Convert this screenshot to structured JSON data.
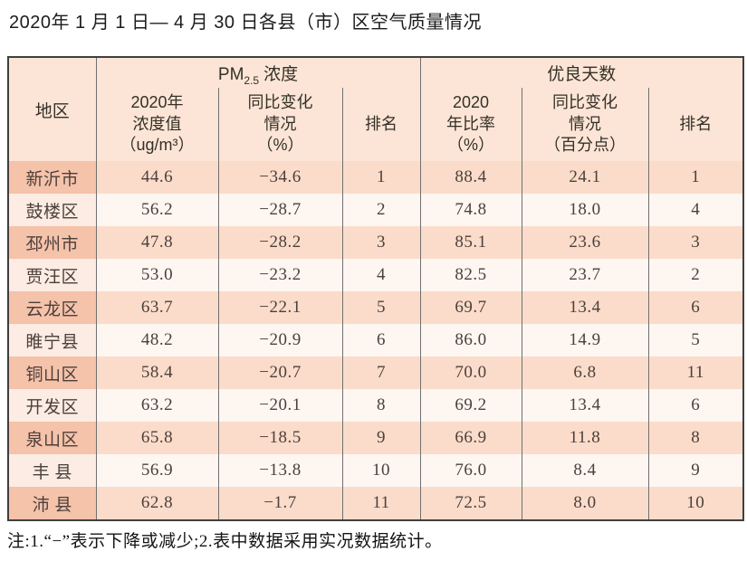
{
  "page": {
    "title": "2020年 1 月 1 日— 4 月 30 日各县（市）区空气质量情况",
    "footnote": "注:1.“−”表示下降或减少;2.表中数据采用实况数据统计。"
  },
  "colors": {
    "header_bg": "#fce5d6",
    "odd_row_region_bg": "#f5c2aa",
    "odd_row_cell_bg": "#fbdcca",
    "even_row_region_bg": "#fcece3",
    "even_row_cell_bg": "#fdf6f1",
    "outer_border": "#3f3f3f",
    "inner_border": "#707070",
    "body_text": "#4c403b"
  },
  "table": {
    "corner_label": "地区",
    "pm_group": {
      "prefix": "PM",
      "sub": "2.5",
      "suffix": "浓度"
    },
    "days_group_label": "优良天数",
    "subheaders": {
      "pm_value": "2020年\n浓度值\n（ug/m³）",
      "pm_change": "同比变化\n情况\n（%）",
      "pm_rank": "排名",
      "days_rate": "2020\n年比率\n（%）",
      "days_change": "同比变化\n情况\n（百分点）",
      "days_rank": "排名"
    },
    "rows": [
      {
        "region": "新沂市",
        "pm_value": "44.6",
        "pm_change": "−34.6",
        "pm_rank": "1",
        "days_rate": "88.4",
        "days_change": "24.1",
        "days_rank": "1"
      },
      {
        "region": "鼓楼区",
        "pm_value": "56.2",
        "pm_change": "−28.7",
        "pm_rank": "2",
        "days_rate": "74.8",
        "days_change": "18.0",
        "days_rank": "4"
      },
      {
        "region": "邳州市",
        "pm_value": "47.8",
        "pm_change": "−28.2",
        "pm_rank": "3",
        "days_rate": "85.1",
        "days_change": "23.6",
        "days_rank": "3"
      },
      {
        "region": "贾汪区",
        "pm_value": "53.0",
        "pm_change": "−23.2",
        "pm_rank": "4",
        "days_rate": "82.5",
        "days_change": "23.7",
        "days_rank": "2"
      },
      {
        "region": "云龙区",
        "pm_value": "63.7",
        "pm_change": "−22.1",
        "pm_rank": "5",
        "days_rate": "69.7",
        "days_change": "13.4",
        "days_rank": "6"
      },
      {
        "region": "睢宁县",
        "pm_value": "48.2",
        "pm_change": "−20.9",
        "pm_rank": "6",
        "days_rate": "86.0",
        "days_change": "14.9",
        "days_rank": "5"
      },
      {
        "region": "铜山区",
        "pm_value": "58.4",
        "pm_change": "−20.7",
        "pm_rank": "7",
        "days_rate": "70.0",
        "days_change": "6.8",
        "days_rank": "11"
      },
      {
        "region": "开发区",
        "pm_value": "63.2",
        "pm_change": "−20.1",
        "pm_rank": "8",
        "days_rate": "69.2",
        "days_change": "13.4",
        "days_rank": "6"
      },
      {
        "region": "泉山区",
        "pm_value": "65.8",
        "pm_change": "−18.5",
        "pm_rank": "9",
        "days_rate": "66.9",
        "days_change": "11.8",
        "days_rank": "8"
      },
      {
        "region": "丰 县",
        "pm_value": "56.9",
        "pm_change": "−13.8",
        "pm_rank": "10",
        "days_rate": "76.0",
        "days_change": "8.4",
        "days_rank": "9"
      },
      {
        "region": "沛 县",
        "pm_value": "62.8",
        "pm_change": "−1.7",
        "pm_rank": "11",
        "days_rate": "72.5",
        "days_change": "8.0",
        "days_rank": "10"
      }
    ]
  }
}
